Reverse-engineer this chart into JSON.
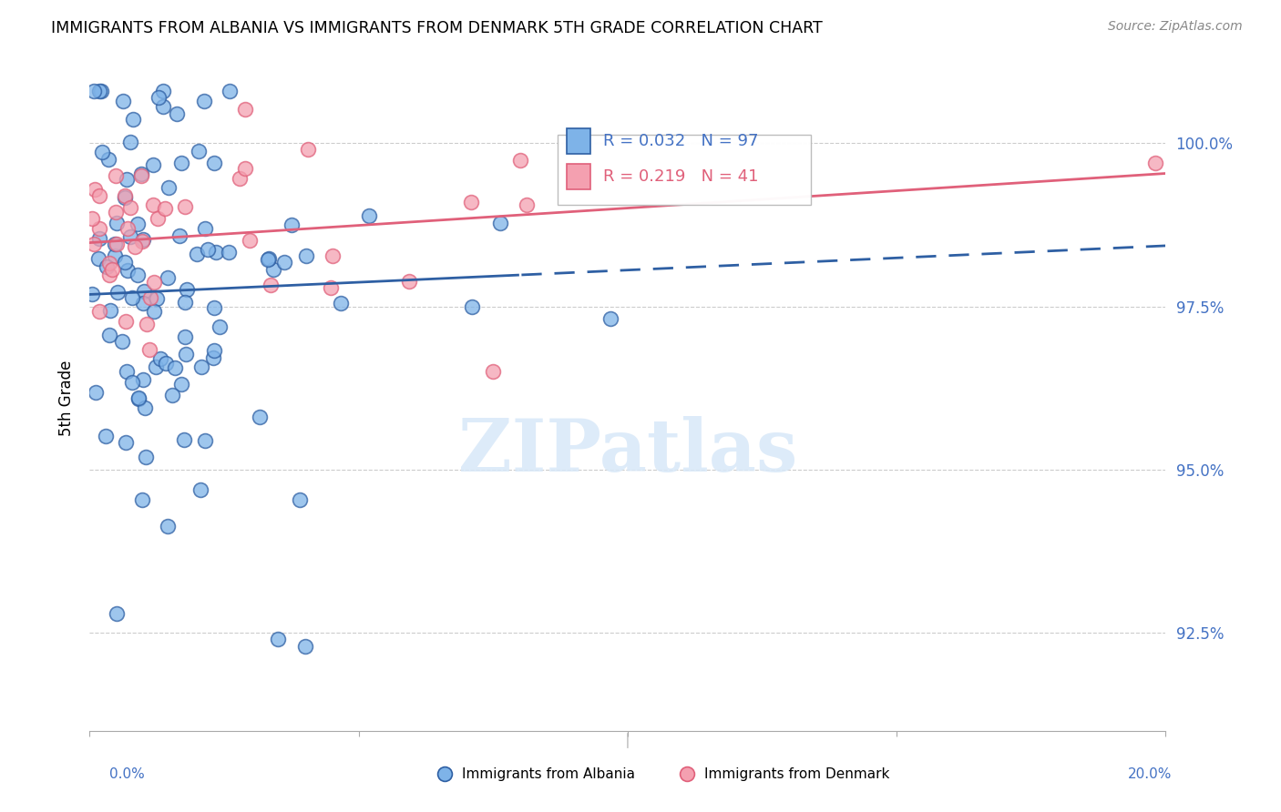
{
  "title": "IMMIGRANTS FROM ALBANIA VS IMMIGRANTS FROM DENMARK 5TH GRADE CORRELATION CHART",
  "source": "Source: ZipAtlas.com",
  "ylabel": "5th Grade",
  "yticks": [
    92.5,
    95.0,
    97.5,
    100.0
  ],
  "ytick_labels": [
    "92.5%",
    "95.0%",
    "97.5%",
    "100.0%"
  ],
  "xlim": [
    0.0,
    20.0
  ],
  "ylim": [
    91.0,
    101.2
  ],
  "albania_R": 0.032,
  "albania_N": 97,
  "denmark_R": 0.219,
  "denmark_N": 41,
  "albania_color": "#7EB3E8",
  "denmark_color": "#F4A0B0",
  "albania_line_color": "#2E5FA3",
  "denmark_line_color": "#E0607A",
  "legend1_label": "Immigrants from Albania",
  "legend2_label": "Immigrants from Denmark",
  "title_fontsize": 12.5,
  "source_fontsize": 10,
  "axis_label_color": "#4472C4",
  "watermark_color": "#D8E8F8",
  "watermark_text": "ZIPatlas"
}
